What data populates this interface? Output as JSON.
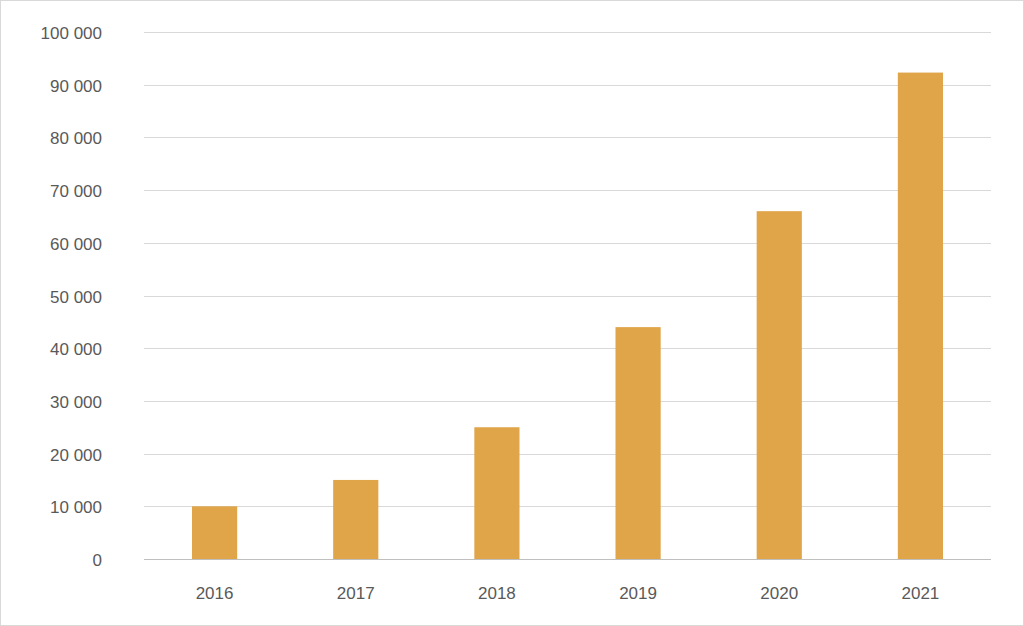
{
  "chart_data": {
    "type": "bar",
    "categories": [
      "2016",
      "2017",
      "2018",
      "2019",
      "2020",
      "2021"
    ],
    "values": [
      10000,
      15000,
      25000,
      44000,
      66000,
      92300
    ],
    "color": "#e0a449",
    "ylim": [
      0,
      100000
    ],
    "yticks": [
      0,
      {
        "value": 10000,
        "label": "10 000"
      },
      {
        "value": 20000,
        "label": "20 000"
      },
      {
        "value": 30000,
        "label": "30 000"
      },
      {
        "value": 40000,
        "label": "40 000"
      },
      {
        "value": 50000,
        "label": "50 000"
      },
      {
        "value": 60000,
        "label": "60 000"
      },
      {
        "value": 70000,
        "label": "70 000"
      },
      {
        "value": 80000,
        "label": "80 000"
      },
      {
        "value": 90000,
        "label": "90 000"
      },
      {
        "value": 100000,
        "label": "100 000"
      }
    ],
    "grid": true
  }
}
